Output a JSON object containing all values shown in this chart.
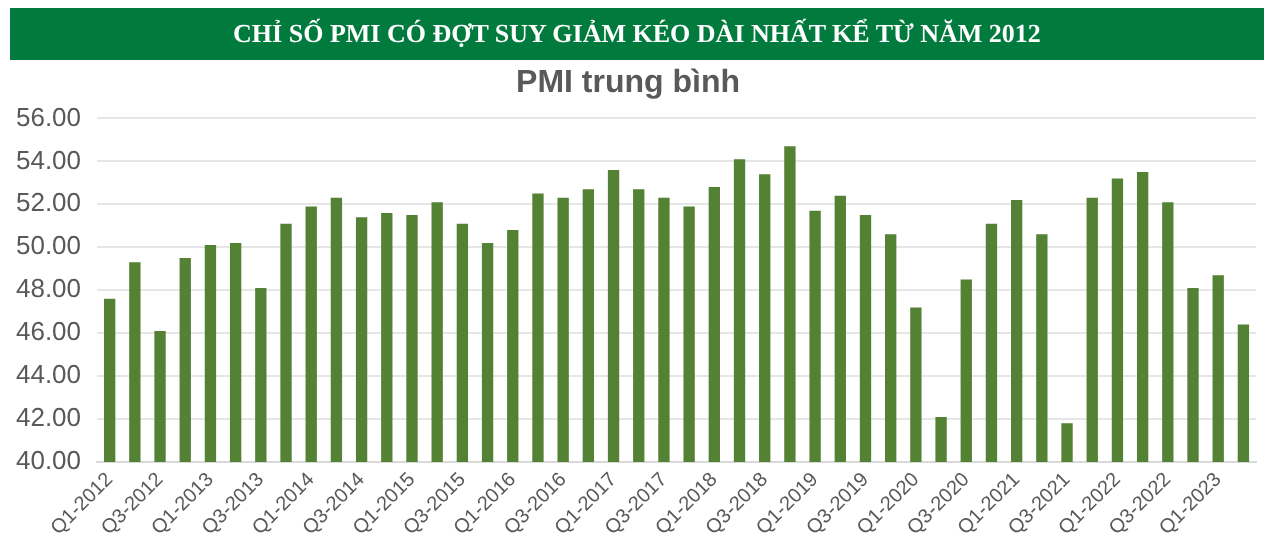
{
  "chart_data": {
    "type": "bar",
    "title": "CHỈ SỐ PMI CÓ ĐỢT SUY GIẢM KÉO DÀI NHẤT KỂ TỪ NĂM 2012",
    "subtitle": "PMI trung bình",
    "categories": [
      "Q1-2012",
      null,
      "Q3-2012",
      null,
      "Q1-2013",
      null,
      "Q3-2013",
      null,
      "Q1-2014",
      null,
      "Q3-2014",
      null,
      "Q1-2015",
      null,
      "Q3-2015",
      null,
      "Q1-2016",
      null,
      "Q3-2016",
      null,
      "Q1-2017",
      null,
      "Q3-2017",
      null,
      "Q1-2018",
      null,
      "Q3-2018",
      null,
      "Q1-2019",
      null,
      "Q3-2019",
      null,
      "Q1-2020",
      null,
      "Q3-2020",
      null,
      "Q1-2021",
      null,
      "Q3-2021",
      null,
      "Q1-2022",
      null,
      "Q3-2022",
      null,
      "Q1-2023",
      null
    ],
    "values": [
      47.6,
      49.3,
      46.1,
      49.5,
      50.1,
      50.2,
      48.1,
      51.1,
      51.9,
      52.3,
      51.4,
      51.6,
      51.5,
      52.1,
      51.1,
      50.2,
      50.8,
      52.5,
      52.3,
      52.7,
      53.6,
      52.7,
      52.3,
      51.9,
      52.8,
      54.1,
      53.4,
      54.7,
      51.7,
      52.4,
      51.5,
      50.6,
      47.2,
      42.1,
      48.5,
      51.1,
      52.2,
      50.6,
      41.8,
      52.3,
      53.2,
      53.5,
      52.1,
      48.1,
      48.7,
      46.4
    ],
    "color": "#548235",
    "ylim": [
      40,
      56
    ],
    "yticks": [
      {
        "value": 40,
        "label": "40.00"
      },
      {
        "value": 42,
        "label": "42.00"
      },
      {
        "value": 44,
        "label": "44.00"
      },
      {
        "value": 46,
        "label": "46.00"
      },
      {
        "value": 48,
        "label": "48.00"
      },
      {
        "value": 50,
        "label": "50.00"
      },
      {
        "value": 52,
        "label": "52.00"
      },
      {
        "value": 54,
        "label": "54.00"
      },
      {
        "value": 56,
        "label": "56.00"
      }
    ],
    "grid": "y"
  }
}
